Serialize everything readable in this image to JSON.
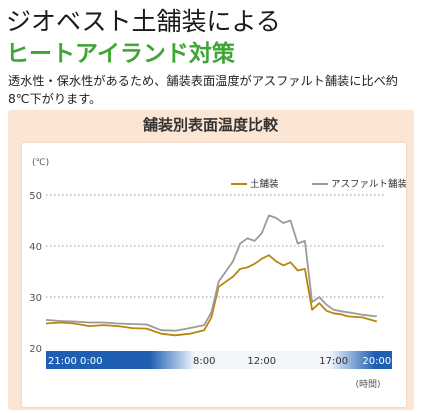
{
  "header": {
    "title": "ジオベスト土舗装による",
    "subtitle": "ヒートアイランド対策",
    "description": "透水性・保水性があるため、舗装表面温度がアスファルト舗装に比べ約8℃下がります。"
  },
  "chart_data": {
    "type": "line",
    "title": "舗装別表面温度比較",
    "ylabel": "(℃)",
    "xlabel": "(時間)",
    "ylim": [
      20,
      50
    ],
    "y_ticks": [
      "50",
      "40",
      "30",
      "20"
    ],
    "y_tick_values": [
      50,
      40,
      30,
      20
    ],
    "x_ticks": [
      "21:00",
      "0:00",
      "8:00",
      "12:00",
      "17:00",
      "20:00"
    ],
    "x_tick_values": [
      0,
      3,
      11,
      15,
      20,
      23
    ],
    "xlim": [
      0,
      23.5
    ],
    "legend_position": "top-right",
    "grid": "dotted-horizontal",
    "series": [
      {
        "name": "土舗装",
        "color": "#b8860b",
        "x": [
          0,
          1,
          2,
          3,
          4,
          5,
          6,
          7,
          8,
          9,
          10,
          11,
          11.5,
          12,
          12.5,
          13,
          13.5,
          14,
          14.5,
          15,
          15.5,
          16,
          16.5,
          17,
          17.5,
          18,
          18.5,
          19,
          19.5,
          20,
          20.5,
          21,
          22,
          23
        ],
        "values": [
          24.8,
          25.0,
          24.8,
          24.3,
          24.5,
          24.3,
          23.9,
          23.8,
          22.8,
          22.5,
          22.8,
          23.5,
          26,
          32,
          33,
          34,
          35.5,
          35.8,
          36.5,
          37.5,
          38.2,
          37.0,
          36.2,
          36.8,
          35.2,
          35.5,
          27.5,
          28.8,
          27.3,
          26.8,
          26.6,
          26.2,
          26.0,
          25.2
        ]
      },
      {
        "name": "アスファルト舗装",
        "color": "#9a9a9a",
        "x": [
          0,
          1,
          2,
          3,
          4,
          5,
          6,
          7,
          8,
          9,
          10,
          11,
          11.5,
          12,
          12.5,
          13,
          13.5,
          14,
          14.5,
          15,
          15.5,
          16,
          16.5,
          17,
          17.5,
          18,
          18.5,
          19,
          19.5,
          20,
          20.5,
          21,
          22,
          23
        ],
        "values": [
          25.5,
          25.3,
          25.2,
          25.0,
          25.0,
          24.8,
          24.7,
          24.6,
          23.5,
          23.4,
          23.9,
          24.5,
          27,
          33,
          35,
          37,
          40.5,
          41.5,
          41.0,
          42.5,
          46.0,
          45.5,
          44.5,
          45.0,
          40.5,
          41.0,
          29.0,
          30.0,
          28.5,
          27.5,
          27.2,
          27.0,
          26.5,
          26.2
        ]
      }
    ],
    "time_band": {
      "night_color": "#1e5fb4",
      "day_color": "#f2f6fb"
    }
  }
}
